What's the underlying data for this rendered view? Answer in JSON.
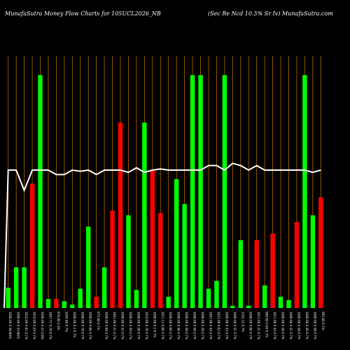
{
  "chart_data": {
    "type": "bar",
    "title_left": "MunafaSutra  Money Flow  Charts for 105UCL2026_NB",
    "title_right": "(Sec Re  Ncd 10.5% Sr Iv) MunafaSutra.com",
    "colors": {
      "up": "#00ff00",
      "down": "#ff0000",
      "line": "#ffffff",
      "grid": "#b86a00",
      "background": "#000000"
    },
    "ylim": [
      0,
      100
    ],
    "bars": [
      {
        "value": 9,
        "dir": "up"
      },
      {
        "value": 18,
        "dir": "up"
      },
      {
        "value": 18,
        "dir": "up"
      },
      {
        "value": 55,
        "dir": "down"
      },
      {
        "value": 103,
        "dir": "up"
      },
      {
        "value": 4,
        "dir": "up"
      },
      {
        "value": 4,
        "dir": "down"
      },
      {
        "value": 3,
        "dir": "up"
      },
      {
        "value": 1.5,
        "dir": "up"
      },
      {
        "value": 8.5,
        "dir": "up"
      },
      {
        "value": 36,
        "dir": "up"
      },
      {
        "value": 5,
        "dir": "down"
      },
      {
        "value": 18,
        "dir": "up"
      },
      {
        "value": 43,
        "dir": "down"
      },
      {
        "value": 82,
        "dir": "down"
      },
      {
        "value": 41,
        "dir": "up"
      },
      {
        "value": 8,
        "dir": "up"
      },
      {
        "value": 82,
        "dir": "up"
      },
      {
        "value": 61,
        "dir": "down"
      },
      {
        "value": 42,
        "dir": "down"
      },
      {
        "value": 5,
        "dir": "up"
      },
      {
        "value": 57,
        "dir": "up"
      },
      {
        "value": 46,
        "dir": "up"
      },
      {
        "value": 103,
        "dir": "up"
      },
      {
        "value": 103,
        "dir": "up"
      },
      {
        "value": 8.5,
        "dir": "up"
      },
      {
        "value": 12,
        "dir": "up"
      },
      {
        "value": 103,
        "dir": "up"
      },
      {
        "value": 1,
        "dir": "up"
      },
      {
        "value": 30,
        "dir": "up"
      },
      {
        "value": 1,
        "dir": "up"
      },
      {
        "value": 30,
        "dir": "down"
      },
      {
        "value": 10,
        "dir": "up"
      },
      {
        "value": 33,
        "dir": "down"
      },
      {
        "value": 5,
        "dir": "up"
      },
      {
        "value": 3.5,
        "dir": "up"
      },
      {
        "value": 38,
        "dir": "down"
      },
      {
        "value": 103,
        "dir": "up"
      },
      {
        "value": 41,
        "dir": "up"
      },
      {
        "value": 49,
        "dir": "down"
      }
    ],
    "line": [
      0,
      61,
      61,
      52,
      61,
      61,
      61,
      59,
      59,
      61,
      60.5,
      61,
      59,
      61,
      61,
      61,
      60,
      62,
      60,
      61,
      61.5,
      61,
      61,
      61,
      61,
      61,
      63,
      63,
      61,
      64,
      63,
      61,
      63,
      61,
      61,
      61,
      61,
      61,
      61,
      60,
      61
    ],
    "x_labels": [
      "1000.00 0.58 NA%",
      "1000.00 0.55 NA%",
      "1010.00 0.81 0.7%",
      "1010.00 0.24 0.7%",
      "1000.00 0.22 0.8%",
      "1007.77 0.70 0.7%",
      "970.00 0.3%",
      "1004.80 0.7%",
      "1000.00 0.2 0.7%",
      "1000.00 0.78 0.7%",
      "1000.00 0.66 0.7%",
      "975.00 0.7%",
      "1000.00 0.68 0.7%",
      "1001.00 0.21 0.7%",
      "1000.00 0.32 0.7%",
      "1000.00 0.39 0.7%",
      "1000.00 0.26 0.7%",
      "1010.00 0.76 0.7%",
      "1000.00 0.2 0.7%",
      "1011.11 0.66 0.7%",
      "1000.00 0.66 0.7%",
      "1000.00 0.46 0.7%",
      "1000.00 0.58 0.7%",
      "1000.00 0.58 0.7%",
      "1000.00 0.28 0.7%",
      "1001.00 0.44 0.7%",
      "1021.00 0.62 0.7%",
      "1000.00 0.43 0.7%",
      "1000.00 0.51 0.7%",
      "1101.12 0.7%",
      "1000.00 0.66 0.7%",
      "1011.00 0.21 0.7%",
      "990.00 0.64 0.7%",
      "1011.00 0.44 0.7%",
      "1000.00 0.58 0.7%",
      "1000.00 0.31 0.7%",
      "1000.00 0.58 0.7%",
      "1000.00 0.36 0.7%",
      "1000.00 0.58 0.7%",
      "995.00 0.7%"
    ]
  }
}
